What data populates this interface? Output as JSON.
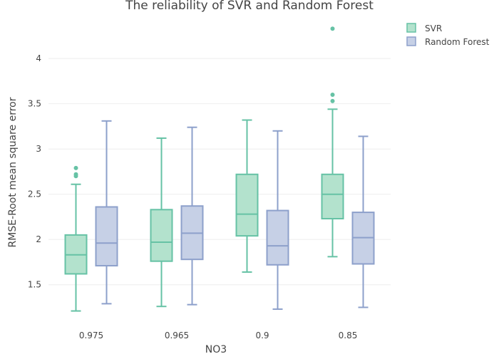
{
  "chart_data": {
    "type": "box",
    "title": "The reliability of SVR and Random Forest",
    "xlabel": "NO3",
    "ylabel": "RMSE-Root mean square error",
    "categories": [
      "0.975",
      "0.965",
      "0.9",
      "0.85"
    ],
    "ylim": [
      1.12,
      4.45
    ],
    "yticks": [
      1.5,
      2,
      2.5,
      3,
      3.5,
      4
    ],
    "ytick_labels": [
      "1.5",
      "2",
      "2.5",
      "3",
      "3.5",
      "4"
    ],
    "grid": true,
    "legend_position": "top-right",
    "series": [
      {
        "name": "SVR",
        "color": "#66c2a5",
        "fill": "#b3e2cd",
        "boxes": [
          {
            "category": "0.975",
            "lower_whisker": 1.21,
            "q1": 1.62,
            "median": 1.83,
            "q3": 2.05,
            "upper_whisker": 2.61,
            "outliers": [
              2.7,
              2.72,
              2.79
            ]
          },
          {
            "category": "0.965",
            "lower_whisker": 1.26,
            "q1": 1.76,
            "median": 1.97,
            "q3": 2.33,
            "upper_whisker": 3.12,
            "outliers": []
          },
          {
            "category": "0.9",
            "lower_whisker": 1.64,
            "q1": 2.04,
            "median": 2.28,
            "q3": 2.72,
            "upper_whisker": 3.32,
            "outliers": []
          },
          {
            "category": "0.85",
            "lower_whisker": 1.81,
            "q1": 2.23,
            "median": 2.5,
            "q3": 2.72,
            "upper_whisker": 3.44,
            "outliers": [
              3.53,
              3.6,
              4.33
            ]
          }
        ]
      },
      {
        "name": "Random Forest",
        "color": "#8da0cb",
        "fill": "#c6d0e6",
        "boxes": [
          {
            "category": "0.975",
            "lower_whisker": 1.29,
            "q1": 1.71,
            "median": 1.96,
            "q3": 2.36,
            "upper_whisker": 3.31,
            "outliers": []
          },
          {
            "category": "0.965",
            "lower_whisker": 1.28,
            "q1": 1.78,
            "median": 2.07,
            "q3": 2.37,
            "upper_whisker": 3.24,
            "outliers": []
          },
          {
            "category": "0.9",
            "lower_whisker": 1.23,
            "q1": 1.72,
            "median": 1.93,
            "q3": 2.32,
            "upper_whisker": 3.2,
            "outliers": []
          },
          {
            "category": "0.85",
            "lower_whisker": 1.25,
            "q1": 1.73,
            "median": 2.02,
            "q3": 2.3,
            "upper_whisker": 3.14,
            "outliers": []
          }
        ]
      }
    ]
  }
}
